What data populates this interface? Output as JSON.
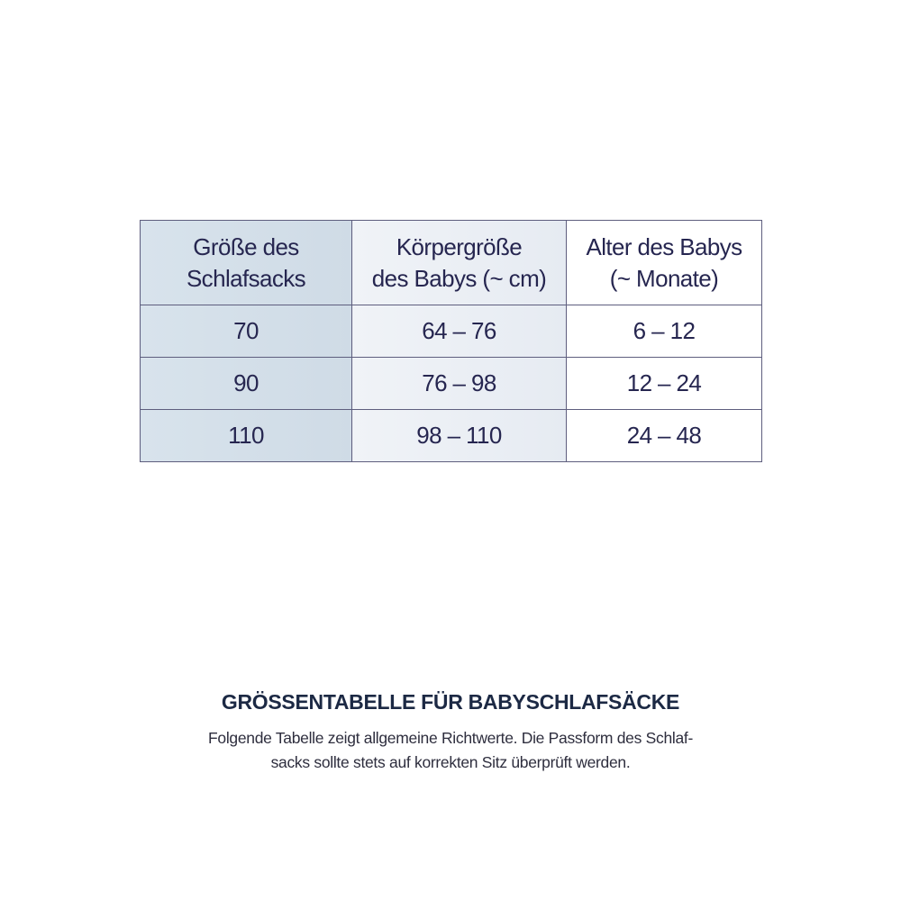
{
  "table": {
    "headers": [
      [
        "Größe des",
        "Schlafsacks"
      ],
      [
        "Körpergröße",
        "des Babys (~ cm)"
      ],
      [
        "Alter des Babys",
        "(~ Monate)"
      ]
    ],
    "rows": [
      [
        "70",
        "64 – 76",
        "6 – 12"
      ],
      [
        "90",
        "76 – 98",
        "12 – 24"
      ],
      [
        "110",
        "98 – 110",
        "24 – 48"
      ]
    ]
  },
  "caption": {
    "title": "GRÖSSENTABELLE FÜR BABYSCHLAFSÄCKE",
    "line1": "Folgende Tabelle zeigt allgemeine Richtwerte. Die Passform des Schlaf-",
    "line2": "sacks sollte stets auf korrekten Sitz überprüft werden."
  },
  "colors": {
    "text": "#262650",
    "col1_bg": "#d3dfe8",
    "col2_bg": "#e9eef4",
    "border": "#5e5e7e"
  }
}
